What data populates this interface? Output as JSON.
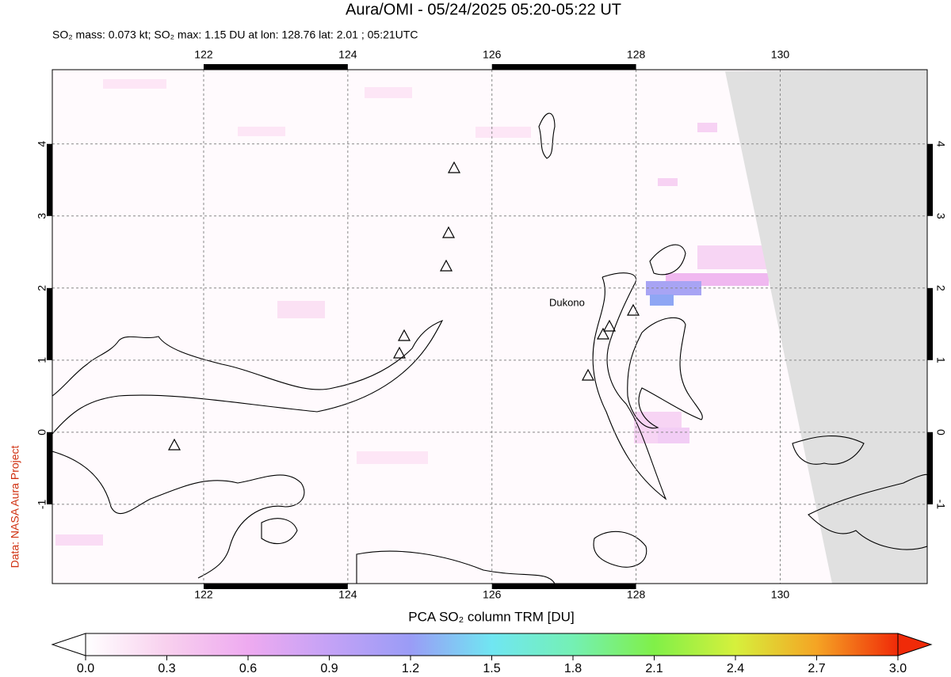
{
  "title": "Aura/OMI - 05/24/2025 05:20-05:22 UT",
  "subtitle": "SO₂ mass: 0.073 kt; SO₂ max: 1.15 DU at lon: 128.76 lat: 2.01 ; 05:21UTC",
  "credit": "Data: NASA Aura Project",
  "map": {
    "xlim": [
      119.9,
      132.04
    ],
    "ylim": [
      -2.1,
      5.03
    ],
    "xticks": [
      122,
      124,
      126,
      128,
      130
    ],
    "yticks": [
      4,
      3,
      2,
      1,
      0,
      -1
    ],
    "volcano_label": "Dukono"
  },
  "colorbar": {
    "label": "PCA SO₂ column TRM [DU]",
    "lim": [
      0,
      3
    ],
    "ticks": [
      {
        "value": 0,
        "label": "0.0"
      },
      0.3,
      0.6,
      0.9,
      1.2,
      1.5,
      1.8,
      2.1,
      2.4,
      2.7,
      {
        "value": 3,
        "label": "3.0"
      }
    ]
  }
}
